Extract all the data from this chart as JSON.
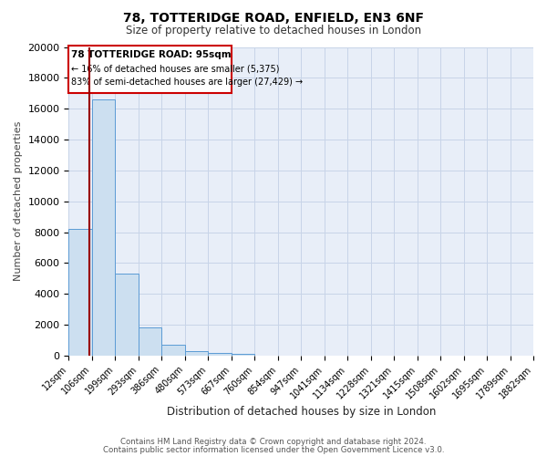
{
  "title": "78, TOTTERIDGE ROAD, ENFIELD, EN3 6NF",
  "subtitle": "Size of property relative to detached houses in London",
  "xlabel": "Distribution of detached houses by size in London",
  "ylabel": "Number of detached properties",
  "bin_edges": [
    12,
    106,
    199,
    293,
    386,
    480,
    573,
    667,
    760,
    854,
    947,
    1041,
    1134,
    1228,
    1321,
    1415,
    1508,
    1602,
    1695,
    1789,
    1882
  ],
  "bin_labels": [
    "12sqm",
    "106sqm",
    "199sqm",
    "293sqm",
    "386sqm",
    "480sqm",
    "573sqm",
    "667sqm",
    "760sqm",
    "854sqm",
    "947sqm",
    "1041sqm",
    "1134sqm",
    "1228sqm",
    "1321sqm",
    "1415sqm",
    "1508sqm",
    "1602sqm",
    "1695sqm",
    "1789sqm",
    "1882sqm"
  ],
  "counts": [
    8200,
    16600,
    5300,
    1850,
    700,
    300,
    150,
    100,
    0,
    0,
    0,
    0,
    0,
    0,
    0,
    0,
    0,
    0,
    0,
    0
  ],
  "bar_color": "#ccdff0",
  "bar_edge_color": "#5b9bd5",
  "grid_color": "#c8d4e8",
  "background_color": "#e8eef8",
  "property_line_x": 95,
  "annotation_title": "78 TOTTERIDGE ROAD: 95sqm",
  "annotation_line1": "← 16% of detached houses are smaller (5,375)",
  "annotation_line2": "83% of semi-detached houses are larger (27,429) →",
  "annotation_box_color": "#ffffff",
  "annotation_box_edge": "#cc0000",
  "red_line_color": "#990000",
  "ylim": [
    0,
    20000
  ],
  "yticks": [
    0,
    2000,
    4000,
    6000,
    8000,
    10000,
    12000,
    14000,
    16000,
    18000,
    20000
  ],
  "footnote1": "Contains HM Land Registry data © Crown copyright and database right 2024.",
  "footnote2": "Contains public sector information licensed under the Open Government Licence v3.0."
}
